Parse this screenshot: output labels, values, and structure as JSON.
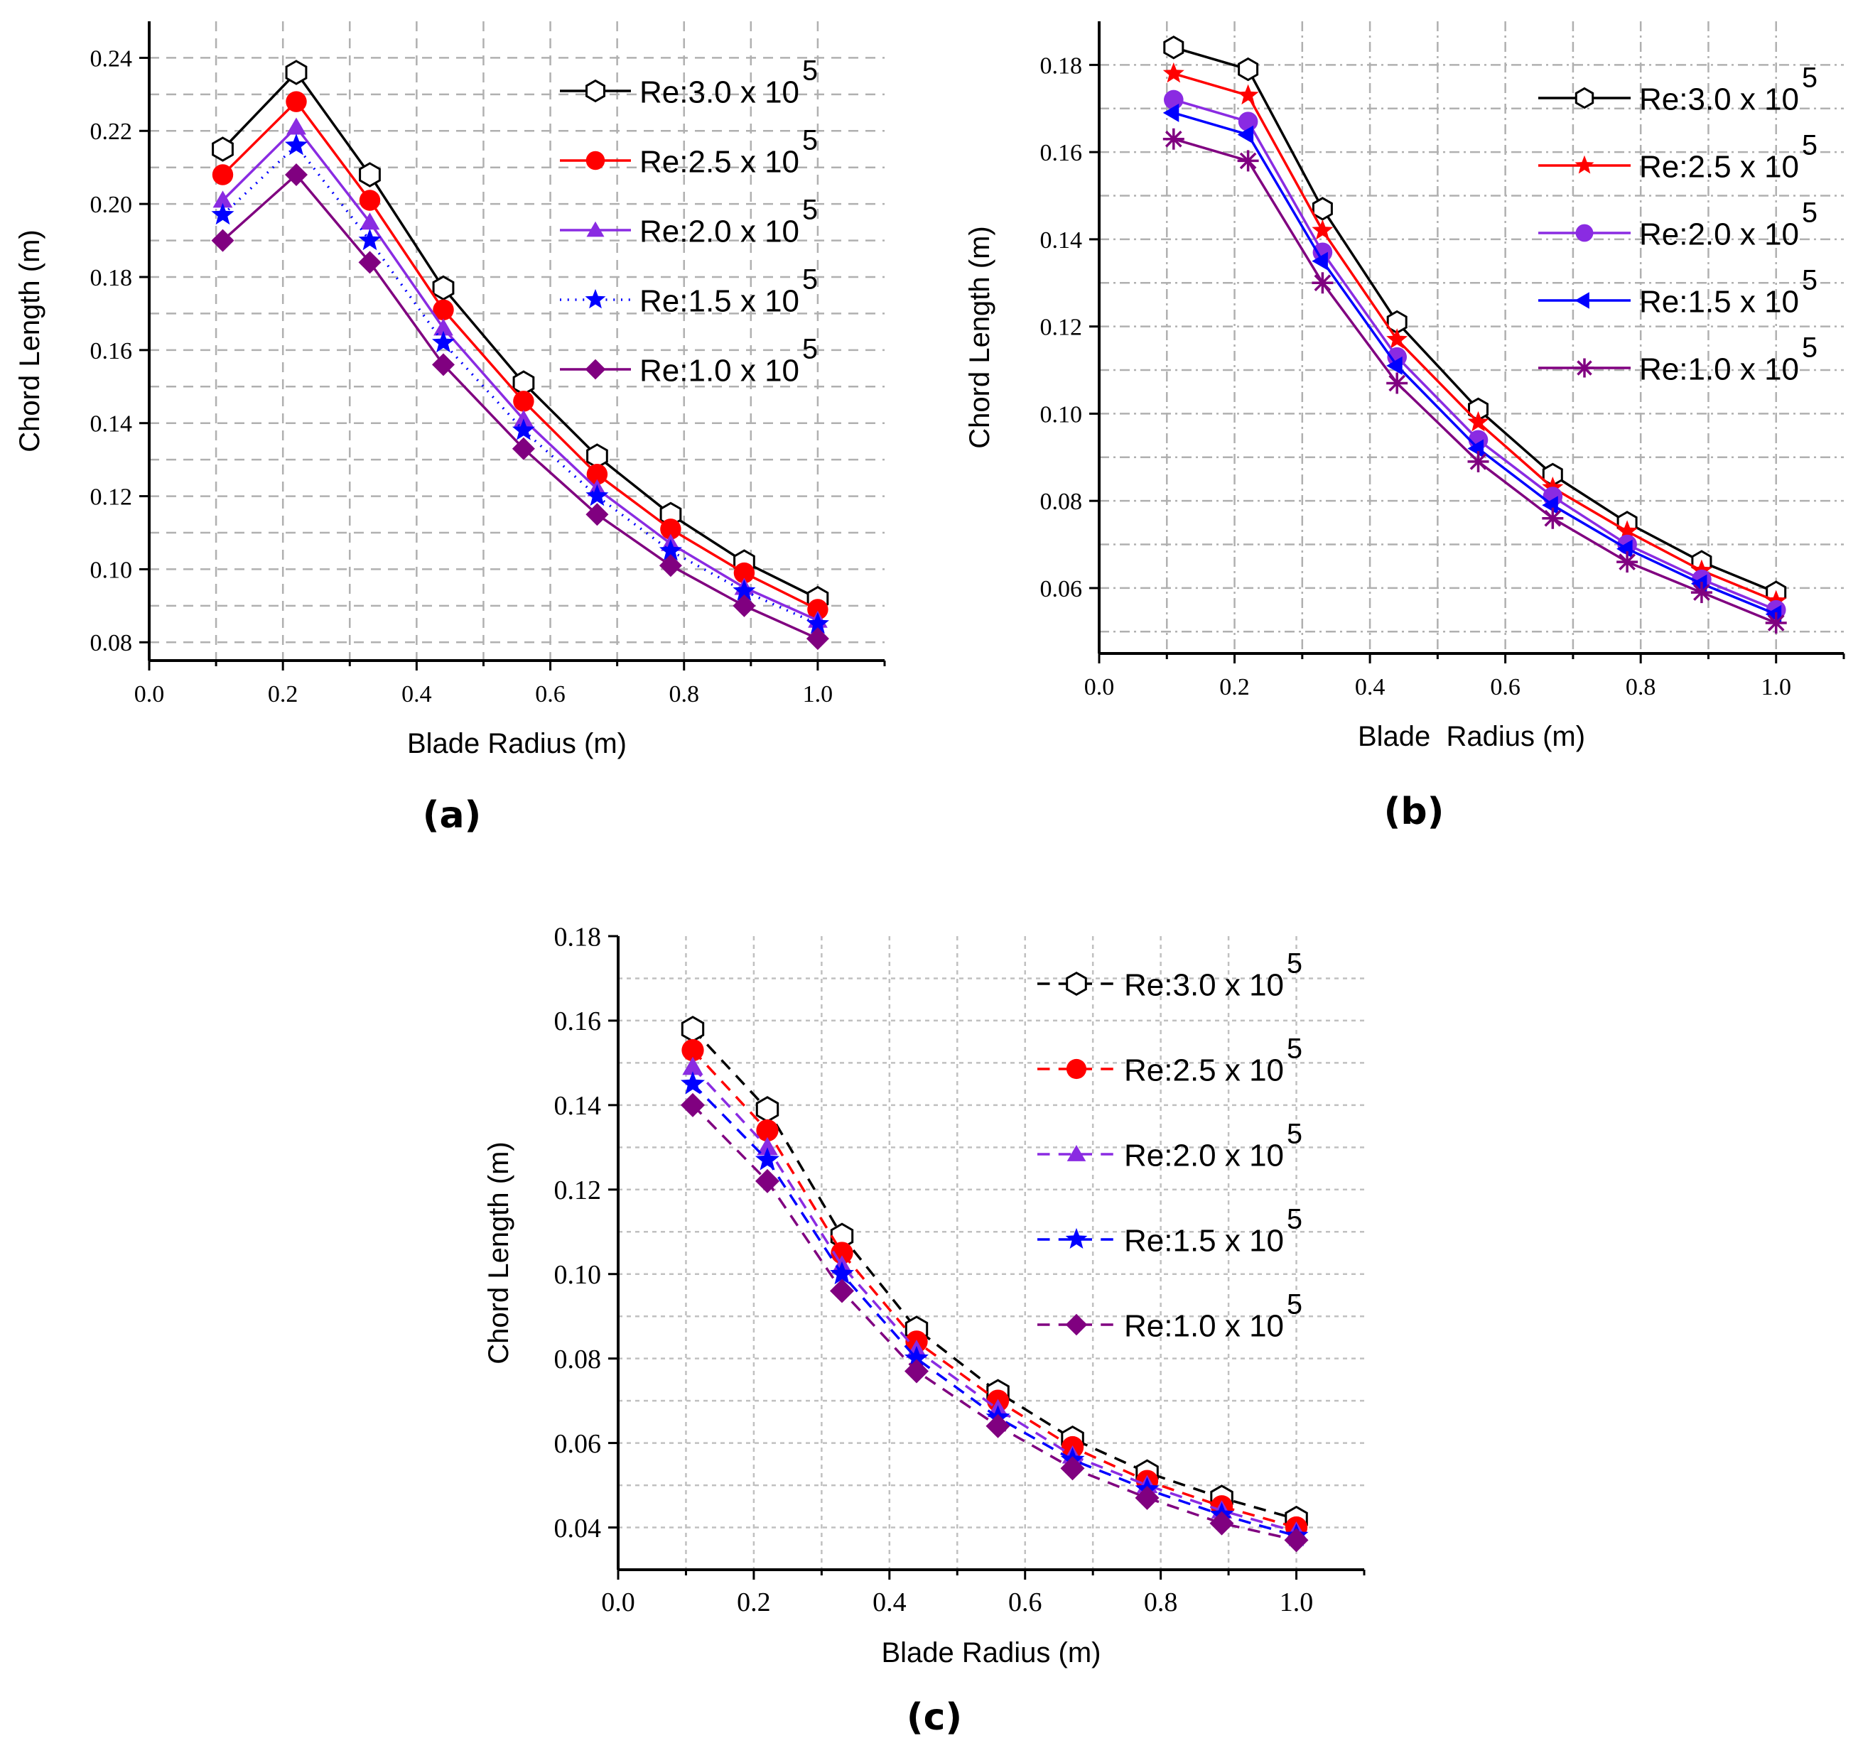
{
  "figure": {
    "description_free": true
  },
  "chart_data": [
    {
      "type": "line",
      "panel": "(a)",
      "xlabel": "Blade Radius (m)",
      "ylabel": "Chord Length (m)",
      "xlim": [
        0.0,
        1.1
      ],
      "ylim": [
        0.075,
        0.25
      ],
      "xticks": [
        0.0,
        0.2,
        0.4,
        0.6,
        0.8,
        1.0
      ],
      "xtick_labels": [
        "0.0",
        "0.2",
        "0.4",
        "0.6",
        "0.8",
        "1.0"
      ],
      "yticks": [
        0.08,
        0.1,
        0.12,
        0.14,
        0.16,
        0.18,
        0.2,
        0.22,
        0.24
      ],
      "ytick_labels": [
        "0.08",
        "0.10",
        "0.12",
        "0.14",
        "0.16",
        "0.18",
        "0.20",
        "0.22",
        "0.24"
      ],
      "x": [
        0.11,
        0.22,
        0.33,
        0.44,
        0.56,
        0.67,
        0.78,
        0.89,
        1.0
      ],
      "legend_position": "top-right",
      "series": [
        {
          "name": "Re:3.0 x 10",
          "exp": "5",
          "color": "#000000",
          "marker": "hexagon",
          "line": "solid",
          "values": [
            0.215,
            0.236,
            0.208,
            0.177,
            0.151,
            0.131,
            0.115,
            0.102,
            0.092
          ]
        },
        {
          "name": "Re:2.5 x 10",
          "exp": "5",
          "color": "#ff0000",
          "marker": "circle",
          "line": "solid",
          "values": [
            0.208,
            0.228,
            0.201,
            0.171,
            0.146,
            0.126,
            0.111,
            0.099,
            0.089
          ]
        },
        {
          "name": "Re:2.0 x 10",
          "exp": "5",
          "color": "#8a2be2",
          "marker": "triangle",
          "line": "solid",
          "values": [
            0.201,
            0.221,
            0.195,
            0.166,
            0.141,
            0.122,
            0.107,
            0.095,
            0.086
          ]
        },
        {
          "name": "Re:1.5 x 10",
          "exp": "5",
          "color": "#0000ff",
          "marker": "star",
          "line": "dotted",
          "values": [
            0.197,
            0.216,
            0.19,
            0.162,
            0.138,
            0.12,
            0.105,
            0.094,
            0.085
          ]
        },
        {
          "name": "Re:1.0 x 10",
          "exp": "5",
          "color": "#800080",
          "marker": "diamond",
          "line": "solid",
          "values": [
            0.19,
            0.208,
            0.184,
            0.156,
            0.133,
            0.115,
            0.101,
            0.09,
            0.081
          ]
        }
      ]
    },
    {
      "type": "line",
      "panel": "(b)",
      "xlabel": "Blade  Radius (m)",
      "ylabel": "Chord Length (m)",
      "xlim": [
        0.0,
        1.1
      ],
      "ylim": [
        0.045,
        0.19
      ],
      "xticks": [
        0.0,
        0.2,
        0.4,
        0.6,
        0.8,
        1.0
      ],
      "xtick_labels": [
        "0.0",
        "0.2",
        "0.4",
        "0.6",
        "0.8",
        "1.0"
      ],
      "yticks": [
        0.06,
        0.08,
        0.1,
        0.12,
        0.14,
        0.16,
        0.18
      ],
      "ytick_labels": [
        "0.06",
        "0.08",
        "0.10",
        "0.12",
        "0.14",
        "0.16",
        "0.18"
      ],
      "x": [
        0.11,
        0.22,
        0.33,
        0.44,
        0.56,
        0.67,
        0.78,
        0.89,
        1.0
      ],
      "legend_position": "top-right",
      "series": [
        {
          "name": "Re:3.0 x 10",
          "exp": "5",
          "color": "#000000",
          "marker": "hexagon",
          "line": "solid",
          "values": [
            0.184,
            0.179,
            0.147,
            0.121,
            0.101,
            0.086,
            0.075,
            0.066,
            0.059
          ]
        },
        {
          "name": "Re:2.5 x 10",
          "exp": "5",
          "color": "#ff0000",
          "marker": "star",
          "line": "solid",
          "values": [
            0.178,
            0.173,
            0.142,
            0.117,
            0.098,
            0.083,
            0.073,
            0.064,
            0.057
          ]
        },
        {
          "name": "Re:2.0 x 10",
          "exp": "5",
          "color": "#8a2be2",
          "marker": "circle",
          "line": "solid",
          "values": [
            0.172,
            0.167,
            0.137,
            0.113,
            0.094,
            0.081,
            0.07,
            0.062,
            0.055
          ]
        },
        {
          "name": "Re:1.5 x 10",
          "exp": "5",
          "color": "#0000ff",
          "marker": "triangle-left",
          "line": "solid",
          "values": [
            0.169,
            0.164,
            0.135,
            0.111,
            0.092,
            0.079,
            0.069,
            0.061,
            0.054
          ]
        },
        {
          "name": "Re:1.0 x 10",
          "exp": "5",
          "color": "#800080",
          "marker": "asterisk",
          "line": "solid",
          "values": [
            0.163,
            0.158,
            0.13,
            0.107,
            0.089,
            0.076,
            0.066,
            0.059,
            0.052
          ]
        }
      ]
    },
    {
      "type": "line",
      "panel": "(c)",
      "xlabel": "Blade Radius (m)",
      "ylabel": "Chord Length (m)",
      "xlim": [
        0.0,
        1.1
      ],
      "ylim": [
        0.03,
        0.18
      ],
      "xticks": [
        0.0,
        0.2,
        0.4,
        0.6,
        0.8,
        1.0
      ],
      "xtick_labels": [
        "0.0",
        "0.2",
        "0.4",
        "0.6",
        "0.8",
        "1.0"
      ],
      "yticks": [
        0.04,
        0.06,
        0.08,
        0.1,
        0.12,
        0.14,
        0.16,
        0.18
      ],
      "ytick_labels": [
        "0.04",
        "0.06",
        "0.08",
        "0.10",
        "0.12",
        "0.14",
        "0.16",
        "0.18"
      ],
      "x": [
        0.11,
        0.22,
        0.33,
        0.44,
        0.56,
        0.67,
        0.78,
        0.89,
        1.0
      ],
      "legend_position": "top-right",
      "series": [
        {
          "name": "Re:3.0 x 10",
          "exp": "5",
          "color": "#000000",
          "marker": "hexagon",
          "line": "dashed",
          "values": [
            0.158,
            0.139,
            0.109,
            0.087,
            0.072,
            0.061,
            0.053,
            0.047,
            0.042
          ]
        },
        {
          "name": "Re:2.5 x 10",
          "exp": "5",
          "color": "#ff0000",
          "marker": "circle",
          "line": "dashed",
          "values": [
            0.153,
            0.134,
            0.105,
            0.084,
            0.07,
            0.059,
            0.051,
            0.045,
            0.04
          ]
        },
        {
          "name": "Re:2.0 x 10",
          "exp": "5",
          "color": "#8a2be2",
          "marker": "triangle",
          "line": "dashed",
          "values": [
            0.149,
            0.13,
            0.102,
            0.082,
            0.068,
            0.057,
            0.05,
            0.044,
            0.039
          ]
        },
        {
          "name": "Re:1.5 x 10",
          "exp": "5",
          "color": "#0000ff",
          "marker": "star",
          "line": "dashed",
          "values": [
            0.145,
            0.127,
            0.1,
            0.08,
            0.066,
            0.056,
            0.049,
            0.043,
            0.038
          ]
        },
        {
          "name": "Re:1.0 x 10",
          "exp": "5",
          "color": "#800080",
          "marker": "diamond",
          "line": "dashed",
          "values": [
            0.14,
            0.122,
            0.096,
            0.077,
            0.064,
            0.054,
            0.047,
            0.041,
            0.037
          ]
        }
      ]
    }
  ]
}
